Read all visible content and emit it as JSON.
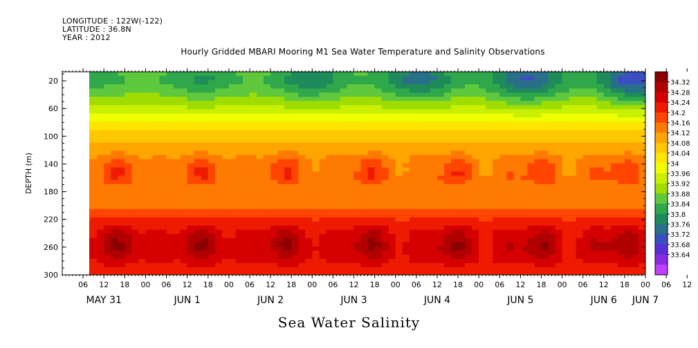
{
  "header": {
    "longitude": "LONGITUDE : 122W(-122)",
    "latitude": "LATITUDE : 36.8N",
    "year": "YEAR : 2012",
    "title": "Hourly Gridded MBARI Mooring M1 Sea Water Temperature and Salinity Observations"
  },
  "chart_data": {
    "type": "heatmap",
    "title": "Hourly Gridded MBARI Mooring M1 Sea Water Temperature and Salinity Observations",
    "xlabel": "Sea Water Salinity",
    "ylabel": "DEPTH (m)",
    "x_hour_ticks": [
      "06",
      "12",
      "18",
      "00",
      "06",
      "12",
      "18",
      "00",
      "06",
      "12",
      "18",
      "00",
      "06",
      "12",
      "18",
      "00",
      "06",
      "12",
      "18",
      "00",
      "06",
      "12",
      "18",
      "00",
      "06",
      "12",
      "18",
      "00",
      "06",
      "12",
      "18",
      "00"
    ],
    "x_day_labels": [
      {
        "label": "MAY 31",
        "hour": 12
      },
      {
        "label": "JUN  1",
        "hour": 36
      },
      {
        "label": "JUN  2",
        "hour": 60
      },
      {
        "label": "JUN  3",
        "hour": 84
      },
      {
        "label": "JUN  4",
        "hour": 108
      },
      {
        "label": "JUN  5",
        "hour": 132
      },
      {
        "label": "JUN  6",
        "hour": 156
      },
      {
        "label": "JUN  7",
        "hour": 168
      }
    ],
    "x_range_hours": [
      0,
      168
    ],
    "data_start_hour": 6,
    "y_ticks": [
      20,
      60,
      100,
      140,
      180,
      220,
      260,
      300
    ],
    "ylim": [
      300,
      7
    ],
    "colorbar": {
      "labels": [
        "34.32",
        "34.28",
        "34.24",
        "34.2",
        "34.16",
        "34.12",
        "34.08",
        "34.04",
        "34",
        "33.96",
        "33.92",
        "33.88",
        "33.84",
        "33.8",
        "33.76",
        "33.72",
        "33.68",
        "33.64"
      ],
      "colors": [
        "#8b0000",
        "#b00000",
        "#d40000",
        "#ee1b00",
        "#ff4500",
        "#ff7a00",
        "#ffa500",
        "#ffc800",
        "#ffe600",
        "#f0ff00",
        "#c8f000",
        "#9fdc00",
        "#5fc83c",
        "#2ea84a",
        "#1f8a5a",
        "#2a6f8a",
        "#3b4fc0",
        "#5a2fd8",
        "#8a2be2",
        "#c040ff"
      ]
    },
    "depth_profile": [
      {
        "depth": 10,
        "salinity": 33.9
      },
      {
        "depth": 20,
        "salinity": 33.89
      },
      {
        "depth": 40,
        "salinity": 33.92
      },
      {
        "depth": 60,
        "salinity": 33.96
      },
      {
        "depth": 80,
        "salinity": 34.02
      },
      {
        "depth": 100,
        "salinity": 34.07
      },
      {
        "depth": 120,
        "salinity": 34.11
      },
      {
        "depth": 140,
        "salinity": 34.15
      },
      {
        "depth": 160,
        "salinity": 34.16
      },
      {
        "depth": 180,
        "salinity": 34.13
      },
      {
        "depth": 200,
        "salinity": 34.14
      },
      {
        "depth": 220,
        "salinity": 34.2
      },
      {
        "depth": 240,
        "salinity": 34.25
      },
      {
        "depth": 260,
        "salinity": 34.27
      },
      {
        "depth": 280,
        "salinity": 34.24
      },
      {
        "depth": 300,
        "salinity": 34.2
      }
    ]
  }
}
